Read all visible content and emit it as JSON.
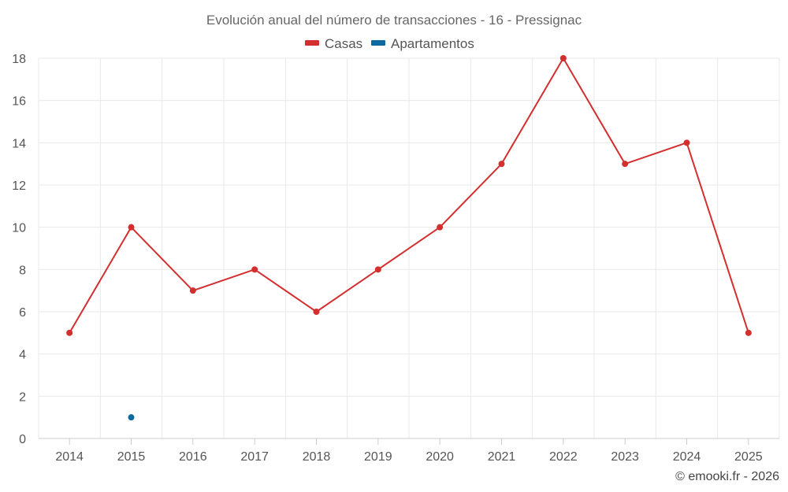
{
  "chart_data": {
    "type": "line",
    "title": "Evolución anual del número de transacciones - 16 - Pressignac",
    "xlabel": "",
    "ylabel": "",
    "categories": [
      "2014",
      "2015",
      "2016",
      "2017",
      "2018",
      "2019",
      "2020",
      "2021",
      "2022",
      "2023",
      "2024",
      "2025"
    ],
    "ylim": [
      0,
      18
    ],
    "yticks": [
      0,
      2,
      4,
      6,
      8,
      10,
      12,
      14,
      16,
      18
    ],
    "grid": true,
    "legend_position": "top-center",
    "series": [
      {
        "name": "Casas",
        "color": "#d32f2f",
        "values": [
          5,
          10,
          7,
          8,
          6,
          8,
          10,
          13,
          18,
          13,
          14,
          5
        ]
      },
      {
        "name": "Apartamentos",
        "color": "#0d6aa0",
        "values": [
          null,
          1,
          null,
          null,
          null,
          null,
          null,
          null,
          null,
          null,
          null,
          null
        ]
      }
    ],
    "credit": "© emooki.fr - 2026"
  }
}
